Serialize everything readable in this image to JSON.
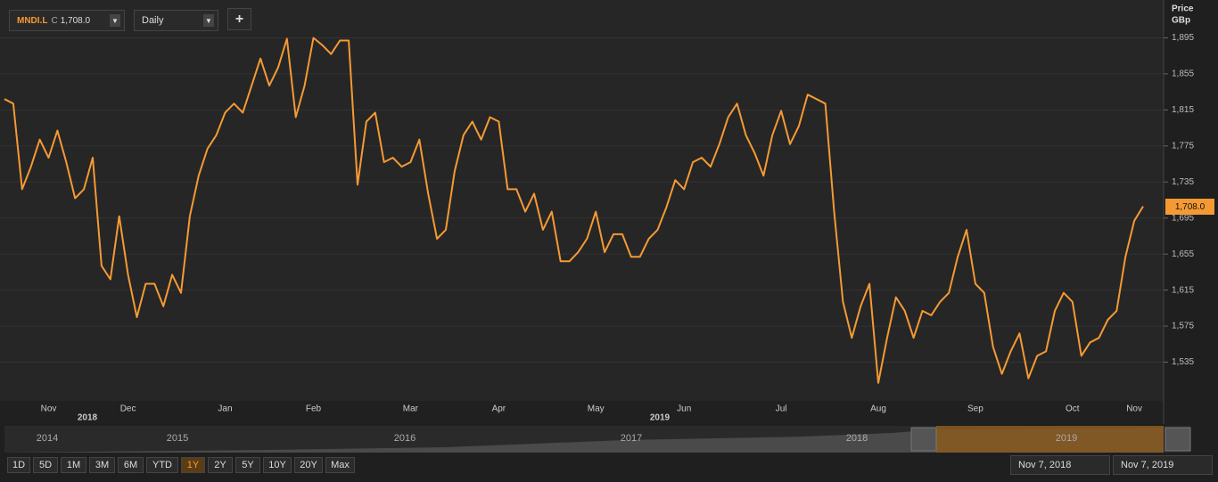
{
  "ui": {
    "symbol": "MNDI.L",
    "quote_type": "C",
    "last": "1,708.0",
    "interval": "Daily",
    "add": "+",
    "axis_title": "Price",
    "axis_unit": "GBp",
    "years": [
      "2018",
      "2019"
    ],
    "navigator_years": [
      "2014",
      "2015",
      "2016",
      "2017",
      "2018",
      "2019"
    ],
    "ranges": [
      "1D",
      "5D",
      "1M",
      "3M",
      "6M",
      "YTD",
      "1Y",
      "2Y",
      "5Y",
      "10Y",
      "20Y",
      "Max"
    ],
    "active_range": 6,
    "from": "Nov 7, 2018",
    "to": "Nov 7, 2019"
  },
  "chart_data": {
    "type": "line",
    "categories": [
      null,
      null,
      null,
      null,
      null,
      "Nov",
      null,
      null,
      null,
      null,
      null,
      null,
      null,
      null,
      "Dec",
      null,
      null,
      null,
      null,
      null,
      null,
      null,
      null,
      null,
      null,
      "Jan",
      null,
      null,
      null,
      null,
      null,
      null,
      null,
      null,
      null,
      "Feb",
      null,
      null,
      null,
      null,
      null,
      null,
      null,
      null,
      null,
      null,
      "Mar",
      null,
      null,
      null,
      null,
      null,
      null,
      null,
      null,
      null,
      "Apr",
      null,
      null,
      null,
      null,
      null,
      null,
      null,
      null,
      null,
      null,
      "May",
      null,
      null,
      null,
      null,
      null,
      null,
      null,
      null,
      null,
      "Jun",
      null,
      null,
      null,
      null,
      null,
      null,
      null,
      null,
      null,
      null,
      "Jul",
      null,
      null,
      null,
      null,
      null,
      null,
      null,
      null,
      null,
      null,
      "Aug",
      null,
      null,
      null,
      null,
      null,
      null,
      null,
      null,
      null,
      null,
      "Sep",
      null,
      null,
      null,
      null,
      null,
      null,
      null,
      null,
      null,
      null,
      "Oct",
      null,
      null,
      null,
      null,
      null,
      null,
      "Nov",
      null
    ],
    "series": [
      {
        "color": "#f59a33",
        "values": [
          1827,
          1822,
          1727,
          1752,
          1782,
          1762,
          1792,
          1757,
          1717,
          1727,
          1762,
          1642,
          1627,
          1697,
          1632,
          1585,
          1622,
          1622,
          1597,
          1632,
          1612,
          1697,
          1742,
          1772,
          1787,
          1812,
          1822,
          1812,
          1842,
          1872,
          1842,
          1862,
          1894,
          1807,
          1842,
          1895,
          1887,
          1877,
          1892,
          1892,
          1732,
          1802,
          1812,
          1757,
          1762,
          1752,
          1757,
          1782,
          1722,
          1672,
          1682,
          1747,
          1787,
          1802,
          1782,
          1807,
          1802,
          1727,
          1727,
          1702,
          1722,
          1682,
          1702,
          1647,
          1647,
          1657,
          1672,
          1702,
          1657,
          1677,
          1677,
          1652,
          1652,
          1672,
          1682,
          1707,
          1737,
          1727,
          1757,
          1762,
          1752,
          1777,
          1807,
          1822,
          1787,
          1767,
          1742,
          1787,
          1814,
          1777,
          1797,
          1832,
          1827,
          1822,
          1702,
          1602,
          1562,
          1597,
          1622,
          1512,
          1562,
          1607,
          1592,
          1562,
          1592,
          1587,
          1602,
          1612,
          1652,
          1682,
          1622,
          1612,
          1552,
          1522,
          1547,
          1567,
          1517,
          1542,
          1547,
          1592,
          1612,
          1602,
          1542,
          1557,
          1562,
          1582,
          1592,
          1652,
          1692,
          1708
        ]
      }
    ],
    "ylim": [
      1492,
      1937
    ],
    "yticks": [
      {
        "value": 1535,
        "label": "1,535"
      },
      {
        "value": 1575,
        "label": "1,575"
      },
      {
        "value": 1615,
        "label": "1,615"
      },
      {
        "value": 1655,
        "label": "1,655"
      },
      {
        "value": 1695,
        "label": "1,695"
      },
      {
        "value": 1735,
        "label": "1,735"
      },
      {
        "value": 1775,
        "label": "1,775"
      },
      {
        "value": 1815,
        "label": "1,815"
      },
      {
        "value": 1855,
        "label": "1,855"
      },
      {
        "value": 1895,
        "label": "1,895"
      }
    ],
    "grid": true
  }
}
